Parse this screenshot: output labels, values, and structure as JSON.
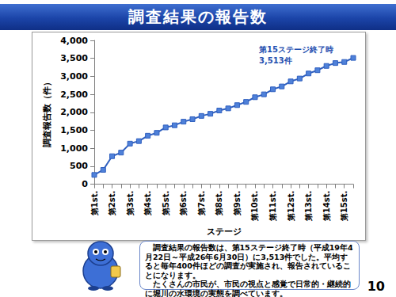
{
  "slide": {
    "title": "調査結果の報告数",
    "caption": [
      "調査結果の報告数は、第15ステージ終了時（平成19年4月22日～平成26年6月30日）に3,513件でした。平均すると毎年400件ほどの調査が実施され、報告されていることになります。",
      "たくさんの市民が、市民の視点と感覚で日常的・継続的に堀川の水環境の実態を調べています。"
    ],
    "page": "10"
  },
  "chart_data": {
    "type": "line",
    "x_label": "ステージ",
    "y_label": "調査報告数（件）",
    "categories": [
      "第1st.",
      null,
      "第2st.",
      null,
      "第3st.",
      null,
      "第4st.",
      null,
      "第5st.",
      null,
      "第6st.",
      null,
      "第7st.",
      null,
      "第8st.",
      null,
      "第9st.",
      null,
      "第10st.",
      null,
      "第11st.",
      null,
      "第12st.",
      null,
      "第13st.",
      null,
      "第14st.",
      null,
      "第15st.",
      null
    ],
    "values": [
      260,
      400,
      780,
      880,
      1130,
      1200,
      1350,
      1430,
      1580,
      1640,
      1740,
      1810,
      1900,
      1960,
      2050,
      2110,
      2200,
      2290,
      2420,
      2500,
      2640,
      2720,
      2860,
      2940,
      3080,
      3170,
      3290,
      3370,
      3400,
      3513
    ],
    "color": "#2f5fbf",
    "marker": "square",
    "ylim": [
      0,
      4000
    ],
    "yticks": [
      0,
      500,
      1000,
      1500,
      2000,
      2500,
      3000,
      3500,
      4000
    ],
    "grid": false,
    "annotation": [
      "第15ステージ終了時",
      "3,513件"
    ]
  }
}
